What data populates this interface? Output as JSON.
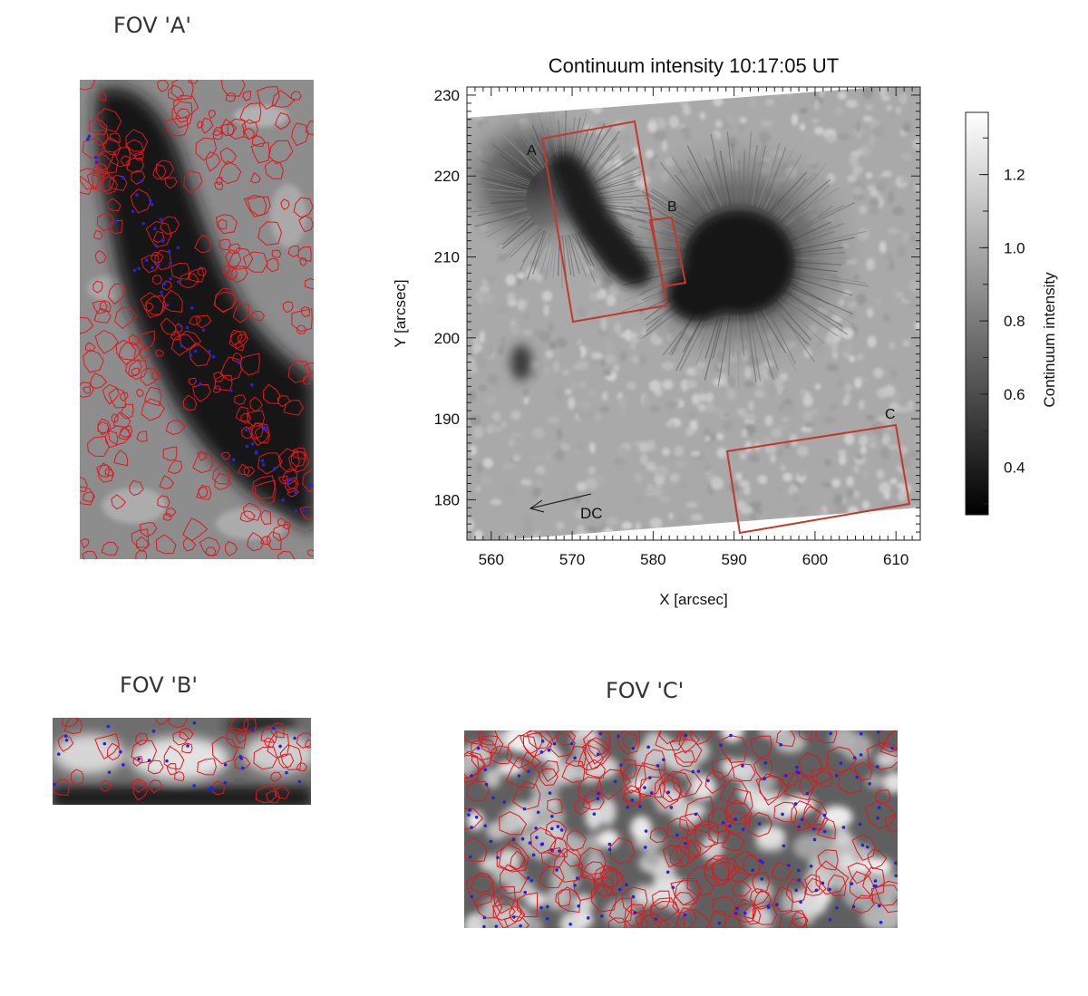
{
  "fov_a": {
    "title": "FOV 'A'"
  },
  "fov_b": {
    "title": "FOV 'B'"
  },
  "fov_c": {
    "title": "FOV 'C'"
  },
  "main": {
    "title": "Continuum intensity 10:17:05 UT",
    "xlabel": "X [arcsec]",
    "ylabel": "Y [arcsec]",
    "xlim": [
      557,
      613
    ],
    "ylim": [
      175,
      231
    ],
    "xticks": [
      "560",
      "570",
      "580",
      "590",
      "600",
      "610"
    ],
    "yticks": [
      "180",
      "190",
      "200",
      "210",
      "220",
      "230"
    ],
    "box_labels": [
      "A",
      "B",
      "C"
    ],
    "arrow_label": "DC",
    "box_color": "#c0392b"
  },
  "colorbar": {
    "label": "Continuum intensity",
    "ticks": [
      "0.4",
      "0.6",
      "0.8",
      "1.0",
      "1.2"
    ],
    "range": [
      0.27,
      1.37
    ]
  },
  "colors": {
    "contour": "#e0181c",
    "marker": "#2323d8"
  }
}
